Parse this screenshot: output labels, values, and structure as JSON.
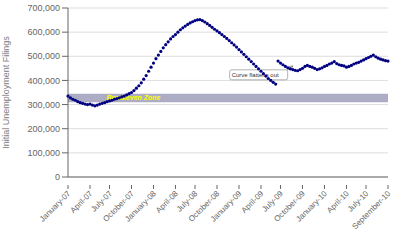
{
  "chart_data": {
    "type": "scatter",
    "ylabel": "Initial Unemployment Filings",
    "color": "#000080",
    "grid": true,
    "categories": [
      "January-07",
      null,
      null,
      null,
      null,
      null,
      null,
      null,
      null,
      "April-07",
      null,
      null,
      null,
      null,
      null,
      null,
      null,
      "July-07",
      null,
      null,
      null,
      null,
      null,
      null,
      null,
      null,
      "October-07",
      null,
      null,
      null,
      null,
      null,
      null,
      null,
      null,
      "January-08",
      null,
      null,
      null,
      null,
      null,
      null,
      null,
      null,
      "April-08",
      null,
      null,
      null,
      null,
      null,
      null,
      null,
      "July-08",
      null,
      null,
      null,
      null,
      null,
      null,
      null,
      null,
      "October-08",
      null,
      null,
      null,
      null,
      null,
      null,
      null,
      null,
      "January-09",
      null,
      null,
      null,
      null,
      null,
      null,
      null,
      null,
      "April-09",
      null,
      null,
      null,
      null,
      null,
      null,
      null,
      "July-09",
      null,
      null,
      null,
      null,
      null,
      null,
      null,
      null,
      "October-09",
      null,
      null,
      null,
      null,
      null,
      null,
      null,
      null,
      "January-10",
      null,
      null,
      null,
      null,
      null,
      null,
      null,
      null,
      "April-10",
      null,
      null,
      null,
      null,
      null,
      null,
      null,
      "July-10",
      null,
      null,
      null,
      null,
      null,
      null,
      null,
      null,
      "September-10"
    ],
    "values": [
      335000,
      328000,
      322000,
      318000,
      312000,
      308000,
      305000,
      302000,
      300000,
      302000,
      298000,
      295000,
      298000,
      302000,
      305000,
      308000,
      312000,
      315000,
      318000,
      322000,
      325000,
      328000,
      332000,
      335000,
      340000,
      345000,
      350000,
      358000,
      368000,
      378000,
      390000,
      405000,
      420000,
      438000,
      455000,
      472000,
      490000,
      505000,
      520000,
      535000,
      548000,
      560000,
      572000,
      582000,
      590000,
      600000,
      610000,
      618000,
      625000,
      632000,
      638000,
      643000,
      648000,
      651000,
      652000,
      648000,
      642000,
      635000,
      628000,
      620000,
      612000,
      605000,
      598000,
      590000,
      582000,
      574000,
      565000,
      556000,
      547000,
      538000,
      528000,
      518000,
      508000,
      498000,
      488000,
      478000,
      468000,
      458000,
      448000,
      438000,
      428000,
      418000,
      408000,
      400000,
      392000,
      385000,
      480000,
      472000,
      465000,
      458000,
      452000,
      448000,
      445000,
      442000,
      440000,
      445000,
      450000,
      458000,
      462000,
      458000,
      455000,
      450000,
      445000,
      448000,
      452000,
      458000,
      462000,
      468000,
      472000,
      478000,
      470000,
      465000,
      462000,
      460000,
      455000,
      458000,
      462000,
      468000,
      472000,
      475000,
      480000,
      485000,
      490000,
      495000,
      500000,
      505000,
      498000,
      492000,
      488000,
      485000,
      482000,
      480000
    ],
    "ylim": [
      0,
      700000
    ],
    "yticks": [
      0,
      {
        "value": 100000,
        "label": "100,000"
      },
      {
        "value": 200000,
        "label": "200,000"
      },
      {
        "value": 300000,
        "label": "300,000"
      },
      {
        "value": 400000,
        "label": "400,000"
      },
      {
        "value": 500000,
        "label": "500,000"
      },
      {
        "value": 600000,
        "label": "600,000"
      },
      {
        "value": 700000,
        "label": "700,000"
      }
    ],
    "bands": [
      {
        "label": "Breakeven Zone",
        "y1": 310000,
        "y2": 345000,
        "color": "#9090b0"
      }
    ],
    "annotations": [
      {
        "text": "Curve flattens out",
        "x": 92,
        "y": 460000,
        "text_x": 67,
        "text_y": 415000
      }
    ]
  }
}
